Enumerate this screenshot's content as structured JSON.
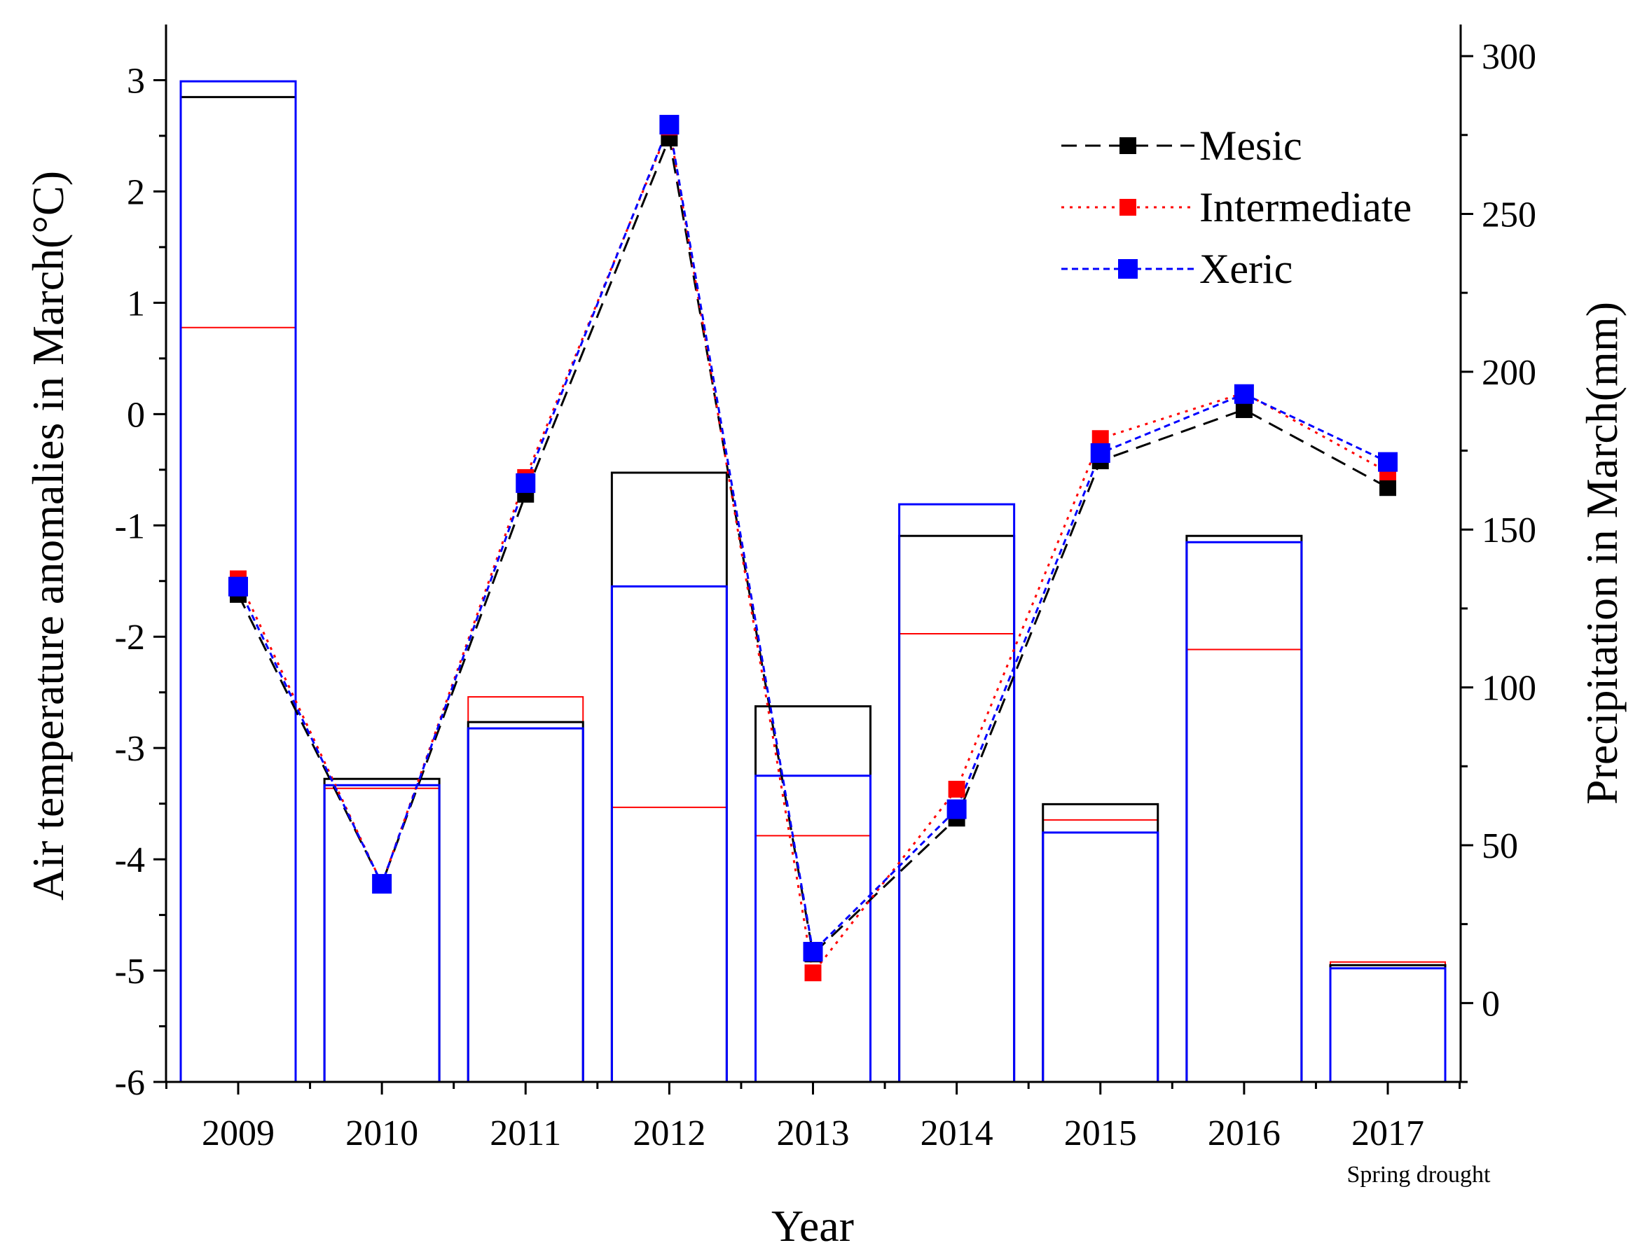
{
  "chart_data": {
    "type": "bar+line",
    "title": "",
    "xlabel": "Year",
    "ylabel_left": "Air temperature anomalies in March(°C)",
    "ylabel_right": "Precipitation in March(mm)",
    "categories": [
      "2009",
      "2010",
      "2011",
      "2012",
      "2013",
      "2014",
      "2015",
      "2016",
      "2017"
    ],
    "category_note": {
      "category": "2017",
      "text": "Spring drought"
    },
    "ylim_left": [
      -6,
      3.5
    ],
    "yticks_left": [
      -6,
      -5,
      -4,
      -3,
      -2,
      -1,
      0,
      1,
      2,
      3
    ],
    "ylim_right": [
      -25,
      310
    ],
    "yticks_right": [
      0,
      50,
      100,
      150,
      200,
      250,
      300
    ],
    "bars": {
      "axis": "right",
      "unit": "mm",
      "series": [
        {
          "name": "Mesic",
          "color": "#000000",
          "values": [
            287,
            71,
            89,
            168,
            94,
            148,
            63,
            148,
            12
          ]
        },
        {
          "name": "Intermediate",
          "color": "#ff0000",
          "values": [
            214,
            68,
            97,
            62,
            53,
            117,
            58,
            112,
            13
          ]
        },
        {
          "name": "Xeric",
          "color": "#0000ff",
          "values": [
            292,
            69,
            87,
            132,
            72,
            158,
            54,
            146,
            11
          ]
        }
      ]
    },
    "lines": {
      "axis": "left",
      "unit": "°C",
      "series": [
        {
          "name": "Mesic",
          "color": "#000000",
          "style": "dash",
          "values": [
            -1.62,
            -4.22,
            -0.72,
            2.48,
            -4.85,
            -3.63,
            -0.42,
            0.04,
            -0.66
          ]
        },
        {
          "name": "Intermediate",
          "color": "#ff0000",
          "style": "dot",
          "values": [
            -1.48,
            -4.22,
            -0.57,
            2.58,
            -5.02,
            -3.37,
            -0.22,
            0.19,
            -0.52
          ]
        },
        {
          "name": "Xeric",
          "color": "#0000ff",
          "style": "shortdash",
          "values": [
            -1.55,
            -4.22,
            -0.62,
            2.6,
            -4.83,
            -3.55,
            -0.35,
            0.18,
            -0.43
          ]
        }
      ]
    },
    "legend": {
      "placement": "top-right",
      "entries": [
        "Mesic",
        "Intermediate",
        "Xeric"
      ]
    }
  }
}
